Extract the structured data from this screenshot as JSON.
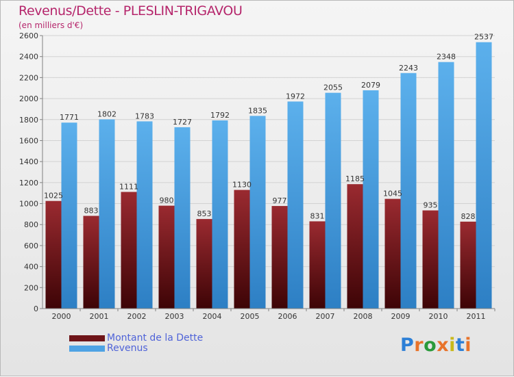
{
  "header": {
    "title": "Revenus/Dette - PLESLIN-TRIGAVOU",
    "subtitle": "(en milliers d'€)"
  },
  "legend": [
    {
      "label": "Montant de la Dette",
      "color": "#6e1418"
    },
    {
      "label": "Revenus",
      "color": "#4fa3e4"
    }
  ],
  "logo": {
    "text": "Proxiti",
    "colors": [
      "#2c7fd6",
      "#e8732a",
      "#2a9a3a",
      "#e8732a",
      "#c9b91a",
      "#2c7fd6",
      "#e8732a"
    ]
  },
  "colors": {
    "debt_top": "#9a2a30",
    "debt_bottom": "#3d0406",
    "revenue_top": "#5cb0ec",
    "revenue_bottom": "#2d7fc4",
    "title": "#b5256b",
    "legend_text": "#4f63d8"
  },
  "chart_data": {
    "type": "bar",
    "title": "Revenus/Dette - PLESLIN-TRIGAVOU",
    "ylabel": "(en milliers d'€)",
    "categories": [
      "2000",
      "2001",
      "2002",
      "2003",
      "2004",
      "2005",
      "2006",
      "2007",
      "2008",
      "2009",
      "2010",
      "2011"
    ],
    "series": [
      {
        "name": "Montant de la Dette",
        "values": [
          1025,
          883,
          1111,
          980,
          853,
          1130,
          977,
          831,
          1185,
          1045,
          935,
          828
        ]
      },
      {
        "name": "Revenus",
        "values": [
          1771,
          1802,
          1783,
          1727,
          1792,
          1835,
          1972,
          2055,
          2079,
          2243,
          2348,
          2537
        ]
      }
    ],
    "ylim": [
      0,
      2600
    ],
    "yticks": [
      0,
      200,
      400,
      600,
      800,
      1000,
      1200,
      1400,
      1600,
      1800,
      2000,
      2200,
      2400,
      2600
    ],
    "grid": true,
    "legend_position": "bottom-left"
  }
}
